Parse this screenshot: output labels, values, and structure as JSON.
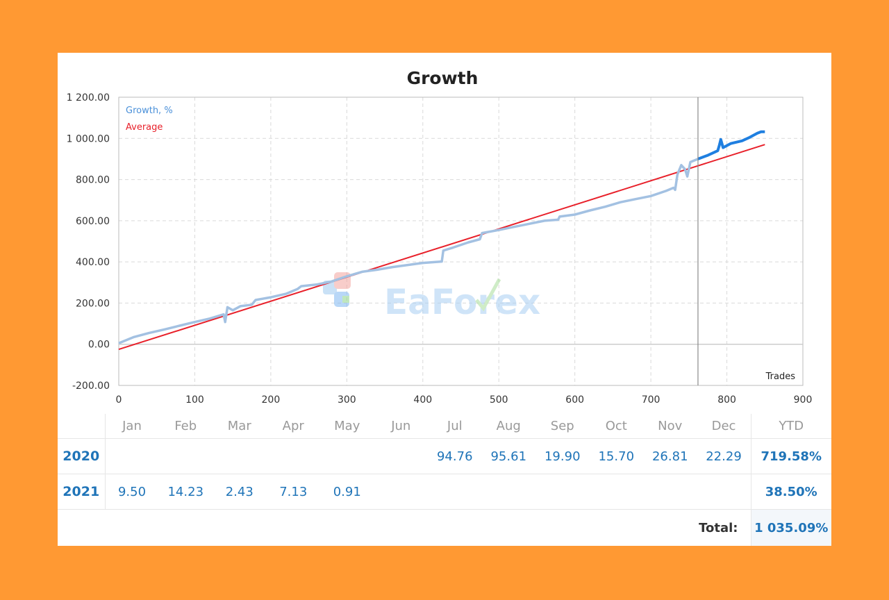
{
  "chart_data": {
    "type": "line",
    "title": "Growth",
    "xlabel": "Trades",
    "ylabel": "",
    "xlim": [
      0,
      900
    ],
    "ylim": [
      -200,
      1200
    ],
    "xticks": [
      "0",
      "100",
      "200",
      "300",
      "400",
      "500",
      "600",
      "700",
      "800",
      "900"
    ],
    "yticks": [
      "-200.00",
      "0.00",
      "200.00",
      "400.00",
      "600.00",
      "800.00",
      "1 000.00",
      "1 200.00"
    ],
    "grid": true,
    "legend_position": "top-left",
    "vertical_marker_x": 762,
    "series": [
      {
        "name": "Growth, %",
        "color": "#a3c1e2",
        "forecast_color": "#1f7fe0",
        "forecast_from_x": 762,
        "points": [
          [
            0,
            5
          ],
          [
            10,
            20
          ],
          [
            20,
            35
          ],
          [
            40,
            55
          ],
          [
            60,
            72
          ],
          [
            80,
            90
          ],
          [
            100,
            108
          ],
          [
            120,
            125
          ],
          [
            138,
            145
          ],
          [
            140,
            108
          ],
          [
            143,
            180
          ],
          [
            150,
            165
          ],
          [
            160,
            185
          ],
          [
            175,
            192
          ],
          [
            180,
            215
          ],
          [
            200,
            228
          ],
          [
            220,
            245
          ],
          [
            235,
            268
          ],
          [
            240,
            282
          ],
          [
            260,
            290
          ],
          [
            280,
            305
          ],
          [
            300,
            330
          ],
          [
            320,
            352
          ],
          [
            340,
            362
          ],
          [
            360,
            375
          ],
          [
            380,
            385
          ],
          [
            400,
            395
          ],
          [
            425,
            402
          ],
          [
            427,
            455
          ],
          [
            440,
            470
          ],
          [
            460,
            495
          ],
          [
            475,
            510
          ],
          [
            478,
            540
          ],
          [
            500,
            555
          ],
          [
            520,
            570
          ],
          [
            540,
            585
          ],
          [
            560,
            600
          ],
          [
            578,
            605
          ],
          [
            580,
            620
          ],
          [
            600,
            630
          ],
          [
            620,
            650
          ],
          [
            640,
            668
          ],
          [
            660,
            690
          ],
          [
            680,
            705
          ],
          [
            700,
            720
          ],
          [
            720,
            745
          ],
          [
            730,
            760
          ],
          [
            732,
            750
          ],
          [
            735,
            825
          ],
          [
            740,
            870
          ],
          [
            745,
            850
          ],
          [
            748,
            815
          ],
          [
            752,
            885
          ],
          [
            762,
            900
          ],
          [
            775,
            918
          ],
          [
            785,
            935
          ],
          [
            788,
            940
          ],
          [
            790,
            965
          ],
          [
            792,
            995
          ],
          [
            795,
            955
          ],
          [
            805,
            975
          ],
          [
            820,
            988
          ],
          [
            830,
            1005
          ],
          [
            840,
            1025
          ],
          [
            845,
            1032
          ],
          [
            850,
            1032
          ]
        ]
      },
      {
        "name": "Average",
        "color": "#e8202a",
        "points": [
          [
            0,
            -25
          ],
          [
            850,
            970
          ]
        ]
      }
    ]
  },
  "monthly_table": {
    "months": [
      "Jan",
      "Feb",
      "Mar",
      "Apr",
      "May",
      "Jun",
      "Jul",
      "Aug",
      "Sep",
      "Oct",
      "Nov",
      "Dec"
    ],
    "ytd_label": "YTD",
    "rows": [
      {
        "year": "2020",
        "values": [
          "",
          "",
          "",
          "",
          "",
          "",
          "94.76",
          "95.61",
          "19.90",
          "15.70",
          "26.81",
          "22.29"
        ],
        "ytd": "719.58%"
      },
      {
        "year": "2021",
        "values": [
          "9.50",
          "14.23",
          "2.43",
          "7.13",
          "0.91",
          "",
          "",
          "",
          "",
          "",
          "",
          ""
        ],
        "ytd": "38.50%"
      }
    ],
    "total_label": "Total:",
    "total_value": "1 035.09%"
  },
  "watermark": {
    "text": "EaForex"
  }
}
